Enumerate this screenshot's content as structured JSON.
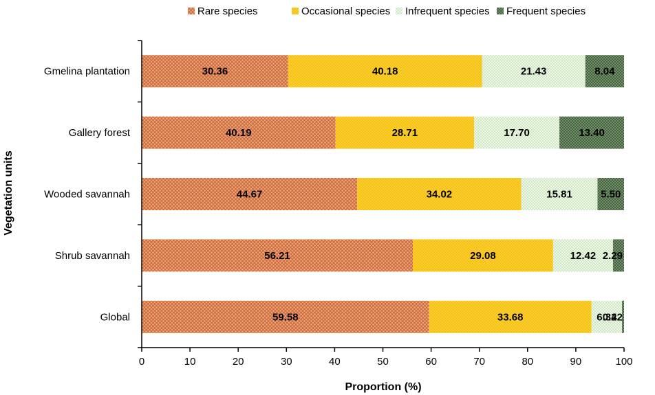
{
  "chart_data": {
    "type": "bar",
    "orientation": "horizontal",
    "stacked": true,
    "categories": [
      "Gmelina plantation",
      "Gallery forest",
      "Wooded savannah",
      "Shrub savannah",
      "Global"
    ],
    "series": [
      {
        "name": "Rare species",
        "values": [
          30.36,
          40.19,
          44.67,
          56.21,
          59.58
        ],
        "color": "#e9a27c"
      },
      {
        "name": "Occasional species",
        "values": [
          40.18,
          28.71,
          34.02,
          29.08,
          33.68
        ],
        "color": "#f6c218"
      },
      {
        "name": "Infrequent species",
        "values": [
          21.43,
          17.7,
          15.81,
          12.42,
          6.32
        ],
        "color": "#dcefd0"
      },
      {
        "name": "Frequent species",
        "values": [
          8.04,
          13.4,
          5.5,
          2.29,
          0.42
        ],
        "color": "#5e7a56"
      }
    ],
    "data_labels": [
      [
        "30.36",
        "40.18",
        "21.43",
        "8.04"
      ],
      [
        "40.19",
        "28.71",
        "17.70",
        "13.40"
      ],
      [
        "44.67",
        "34.02",
        "15.81",
        "5.50"
      ],
      [
        "56.21",
        "29.08",
        "12.42",
        "2.29"
      ],
      [
        "59.58",
        "33.68",
        "6.32",
        "0.42"
      ]
    ],
    "xlabel": "Proportion (%)",
    "ylabel": "Vegetation units",
    "xlim": [
      0,
      100
    ],
    "xticks": [
      "0",
      "10",
      "20",
      "30",
      "40",
      "50",
      "60",
      "70",
      "80",
      "90",
      "100"
    ],
    "grid": false,
    "legend_position": "top"
  }
}
